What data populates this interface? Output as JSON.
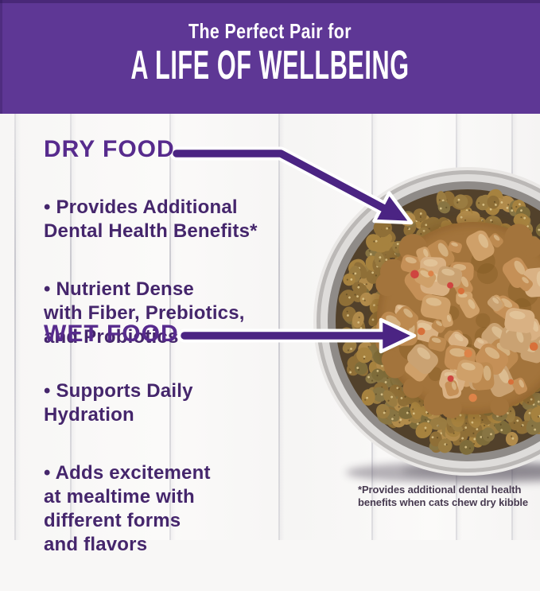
{
  "banner": {
    "kicker": "The Perfect Pair for",
    "title": "A LIFE OF WELLBEING"
  },
  "dry": {
    "heading": "DRY FOOD",
    "bullet1": "• Provides Additional\nDental Health Benefits*",
    "bullet2": "• Nutrient Dense\nwith Fiber, Prebiotics,\nand Probiotics"
  },
  "wet": {
    "heading": "WET FOOD",
    "bullet1": "• Supports Daily\nHydration",
    "bullet2": "• Adds excitement\nat mealtime with\ndifferent forms\nand flavors"
  },
  "footnote": "*Provides additional dental health\nbenefits when cats chew dry kibble",
  "colors": {
    "banner_bg": "#5e3795",
    "heading_purple": "#572b8d",
    "body_purple": "#45266c",
    "arrow": "#4b2483",
    "footnote": "#473a50"
  }
}
